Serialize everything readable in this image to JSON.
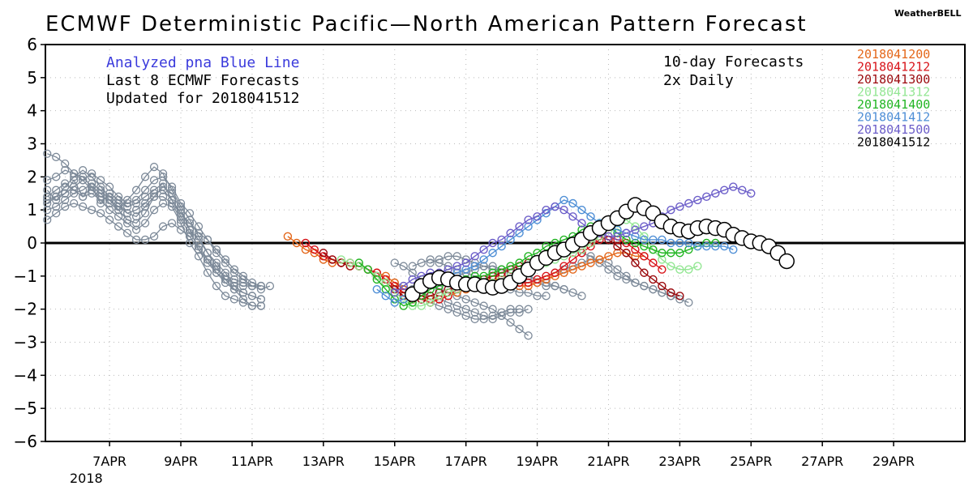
{
  "chart_data": {
    "type": "line",
    "title": "ECMWF Deterministic Pacific—North American Pattern Forecast",
    "brand": "WeatherBELL",
    "ylim": [
      -6,
      6
    ],
    "yticks": [
      "6",
      "5",
      "4",
      "3",
      "2",
      "1",
      "0",
      "−1",
      "−2",
      "−3",
      "−4",
      "−5",
      "−6"
    ],
    "ytick_values": [
      6,
      5,
      4,
      3,
      2,
      1,
      0,
      -1,
      -2,
      -3,
      -4,
      -5,
      -6
    ],
    "xlim": [
      5.2,
      31.0
    ],
    "xticks": [
      {
        "label": "7APR",
        "day": 7
      },
      {
        "label": "9APR",
        "day": 9
      },
      {
        "label": "11APR",
        "day": 11
      },
      {
        "label": "13APR",
        "day": 13
      },
      {
        "label": "15APR",
        "day": 15
      },
      {
        "label": "17APR",
        "day": 17
      },
      {
        "label": "19APR",
        "day": 19
      },
      {
        "label": "21APR",
        "day": 21
      },
      {
        "label": "23APR",
        "day": 23
      },
      {
        "label": "25APR",
        "day": 25
      },
      {
        "label": "27APR",
        "day": 27
      },
      {
        "label": "29APR",
        "day": 29
      }
    ],
    "year_label": "2018",
    "grid": true,
    "annotations": {
      "analyzed": "Analyzed pna Blue Line",
      "last8": "Last 8 ECMWF Forecasts",
      "updated": "Updated for 2018041512",
      "tenday": "10-day Forecasts",
      "twice": "2x Daily"
    },
    "colors": {
      "analyzed_text": "#3b3bdc",
      "history": "#7d8a99",
      "zero_line": "#000000",
      "grid": "#b9b9b9"
    },
    "legend_position": "top-right",
    "history_series": [
      [
        1.6,
        1.3,
        1.5,
        1.9,
        1.4,
        1.7,
        1.2,
        1.5,
        1.3,
        1.1,
        1.2,
        1.4,
        1.6,
        1.8,
        1.3,
        0.9,
        0.6,
        0.3,
        0.1,
        -0.3,
        -0.6,
        -0.9,
        -1.1,
        -1.3,
        -1.4,
        -1.3
      ],
      [
        2.7,
        2.6,
        2.4,
        2.1,
        2.0,
        1.7,
        1.5,
        1.2,
        1.0,
        1.3,
        1.6,
        2.0,
        2.3,
        2.1,
        1.6,
        1.1,
        0.7,
        0.2,
        -0.3,
        -0.7,
        -1.1,
        -1.4,
        -1.7,
        -1.9,
        -1.9
      ],
      [
        1.0,
        1.1,
        1.3,
        1.5,
        1.6,
        1.8,
        1.6,
        1.3,
        1.0,
        0.7,
        0.6,
        0.9,
        1.4,
        1.7,
        1.5,
        1.0,
        0.4,
        -0.2,
        -0.6,
        -0.9,
        -1.1,
        -1.2,
        -1.3,
        -1.3,
        -1.3
      ],
      [
        0.7,
        0.9,
        1.1,
        1.2,
        1.1,
        1.0,
        0.9,
        0.7,
        0.5,
        0.3,
        0.1,
        0.1,
        0.2,
        0.5,
        0.6,
        0.4,
        0.2,
        -0.2,
        -0.5,
        -0.8,
        -1.0,
        -1.1,
        -1.2,
        -1.3,
        -1.3
      ],
      [
        1.3,
        1.4,
        1.5,
        1.7,
        1.9,
        2.1,
        1.9,
        1.7,
        1.4,
        1.2,
        1.3,
        1.6,
        1.9,
        2.0,
        1.7,
        1.2,
        0.9,
        0.5,
        0.1,
        -0.2,
        -0.5,
        -0.8,
        -1.0,
        -1.2,
        -1.3
      ],
      [
        1.9,
        2.0,
        2.2,
        2.1,
        1.9,
        1.6,
        1.4,
        1.3,
        1.1,
        0.9,
        1.0,
        1.2,
        1.5,
        1.6,
        1.3,
        0.8,
        0.4,
        0.1,
        -0.3,
        -0.6,
        -0.9,
        -1.3,
        -1.5,
        -1.6,
        -1.7
      ],
      [
        1.2,
        1.4,
        1.7,
        2.0,
        2.2,
        2.0,
        1.7,
        1.4,
        1.2,
        0.9,
        0.8,
        1.1,
        1.4,
        1.4,
        1.2,
        0.7,
        0.3,
        -0.1,
        -0.5,
        -0.9,
        -1.2,
        -1.4,
        -1.5,
        -1.6,
        -1.7
      ],
      [
        1.4,
        1.6,
        1.8,
        1.6,
        1.4,
        1.5,
        1.3,
        1.0,
        0.8,
        0.6,
        0.4,
        0.6,
        1.0,
        1.2,
        1.1,
        0.6,
        0.0,
        -0.4,
        -0.9,
        -1.3,
        -1.6,
        -1.7,
        -1.8,
        -1.9,
        -1.9
      ]
    ],
    "history_day0": 5.25,
    "history_step": 0.25,
    "history_tails": [
      {
        "x0": 15.0,
        "values": [
          -0.6,
          -0.7,
          -0.9,
          -1.1,
          -1.2,
          -1.4,
          -1.5,
          -1.6,
          -1.7,
          -1.8,
          -1.9,
          -2.0,
          -2.2,
          -2.4,
          -2.6,
          -2.8
        ]
      },
      {
        "x0": 15.0,
        "values": [
          -1.2,
          -1.3,
          -1.4,
          -1.5,
          -1.6,
          -1.7,
          -1.8,
          -1.9,
          -2.0,
          -2.1,
          -2.2,
          -2.3,
          -2.2,
          -2.1,
          -2.1,
          -2.0
        ]
      },
      {
        "x0": 15.5,
        "values": [
          -0.7,
          -0.6,
          -0.5,
          -0.6,
          -0.7,
          -0.8,
          -0.9,
          -1.0,
          -1.1,
          -1.2,
          -1.3,
          -1.4,
          -1.5,
          -1.5,
          -1.6,
          -1.6
        ]
      },
      {
        "x0": 15.5,
        "values": [
          -1.6,
          -1.7,
          -1.8,
          -1.9,
          -2.0,
          -2.1,
          -2.2,
          -2.3,
          -2.3,
          -2.2,
          -2.1,
          -2.0,
          -2.0
        ]
      },
      {
        "x0": 16.0,
        "values": [
          -0.6,
          -0.5,
          -0.4,
          -0.4,
          -0.5,
          -0.6,
          -0.7,
          -0.8,
          -0.8,
          -0.9,
          -1.0,
          -1.0,
          -1.1,
          -1.2,
          -1.3,
          -1.4
        ]
      },
      {
        "x0": 16.5,
        "values": [
          -1.1,
          -1.0,
          -0.9,
          -0.8,
          -0.7,
          -0.7,
          -0.8,
          -0.9,
          -1.0,
          -1.1,
          -1.2,
          -1.3,
          -1.3,
          -1.4,
          -1.5,
          -1.6
        ]
      },
      {
        "x0": 19.5,
        "values": [
          -0.4,
          -0.3,
          -0.2,
          -0.3,
          -0.4,
          -0.6,
          -0.8,
          -1.0,
          -1.1,
          -1.2,
          -1.3,
          -1.4,
          -1.5,
          -1.6,
          -1.7,
          -1.8
        ]
      },
      {
        "x0": 19.5,
        "values": [
          -0.9,
          -0.8,
          -0.7,
          -0.6,
          -0.5,
          -0.5,
          -0.6,
          -0.8,
          -1.0,
          -1.2,
          -1.3,
          -1.4,
          -1.5,
          -1.6
        ]
      }
    ],
    "forecasts": [
      {
        "name": "2018041200",
        "color": "#e4671a",
        "x0": 12.0,
        "values": [
          0.2,
          0.0,
          -0.2,
          -0.3,
          -0.5,
          -0.6,
          -0.6,
          -0.7,
          -0.7,
          -0.8,
          -0.9,
          -1.0,
          -1.2,
          -1.4,
          -1.5,
          -1.6,
          -1.7,
          -1.7,
          -1.6,
          -1.5,
          -1.4,
          -1.3,
          -1.2,
          -1.1,
          -1.1,
          -1.2,
          -1.3,
          -1.3,
          -1.2,
          -1.1,
          -1.0,
          -0.9,
          -0.8,
          -0.7,
          -0.6,
          -0.5,
          -0.4,
          -0.3,
          -0.3,
          -0.4,
          -0.4
        ]
      },
      {
        "name": "2018041212",
        "color": "#d8141a",
        "x0": 12.5,
        "values": [
          0.0,
          -0.2,
          -0.4,
          -0.5,
          -0.6,
          -0.6,
          -0.7,
          -0.8,
          -0.9,
          -1.1,
          -1.3,
          -1.5,
          -1.6,
          -1.7,
          -1.8,
          -1.7,
          -1.6,
          -1.4,
          -1.3,
          -1.2,
          -1.1,
          -1.0,
          -1.0,
          -1.1,
          -1.2,
          -1.2,
          -1.1,
          -1.0,
          -0.9,
          -0.7,
          -0.5,
          -0.3,
          -0.1,
          0.1,
          0.2,
          0.1,
          0.0,
          -0.2,
          -0.4,
          -0.6,
          -0.8
        ]
      },
      {
        "name": "2018041300",
        "color": "#9b0a0e",
        "x0": 13.0,
        "values": [
          -0.3,
          -0.5,
          -0.6,
          -0.7,
          -0.7,
          -0.8,
          -1.0,
          -1.2,
          -1.4,
          -1.6,
          -1.7,
          -1.7,
          -1.6,
          -1.5,
          -1.4,
          -1.3,
          -1.3,
          -1.2,
          -1.1,
          -1.0,
          -0.9,
          -0.8,
          -0.7,
          -0.6,
          -0.5,
          -0.4,
          -0.3,
          -0.2,
          -0.1,
          0.0,
          0.1,
          0.2,
          0.1,
          -0.1,
          -0.3,
          -0.6,
          -0.9,
          -1.1,
          -1.3,
          -1.5,
          -1.6
        ]
      },
      {
        "name": "2018041312",
        "color": "#93e693",
        "x0": 13.5,
        "values": [
          -0.5,
          -0.6,
          -0.7,
          -0.8,
          -1.0,
          -1.2,
          -1.5,
          -1.7,
          -1.9,
          -1.9,
          -1.8,
          -1.6,
          -1.5,
          -1.4,
          -1.3,
          -1.3,
          -1.2,
          -1.2,
          -1.1,
          -1.0,
          -0.9,
          -0.8,
          -0.7,
          -0.6,
          -0.5,
          -0.4,
          -0.3,
          -0.2,
          0.0,
          0.2,
          0.4,
          0.6,
          0.7,
          0.5,
          0.2,
          -0.2,
          -0.5,
          -0.7,
          -0.8,
          -0.8,
          -0.7
        ]
      },
      {
        "name": "2018041400",
        "color": "#22b523",
        "x0": 14.0,
        "values": [
          -0.6,
          -0.8,
          -1.1,
          -1.4,
          -1.7,
          -1.9,
          -1.8,
          -1.6,
          -1.4,
          -1.3,
          -1.2,
          -1.2,
          -1.1,
          -1.0,
          -1.0,
          -0.9,
          -0.8,
          -0.7,
          -0.6,
          -0.4,
          -0.3,
          -0.1,
          0.0,
          0.1,
          0.2,
          0.4,
          0.5,
          0.6,
          0.5,
          0.3,
          0.1,
          0.0,
          -0.1,
          -0.2,
          -0.3,
          -0.3,
          -0.3,
          -0.2,
          -0.1,
          0.0,
          0.0
        ]
      },
      {
        "name": "2018041412",
        "color": "#4f8fd6",
        "x0": 14.5,
        "values": [
          -1.4,
          -1.6,
          -1.8,
          -1.7,
          -1.5,
          -1.3,
          -1.2,
          -1.1,
          -1.0,
          -0.9,
          -0.8,
          -0.7,
          -0.5,
          -0.3,
          -0.1,
          0.1,
          0.3,
          0.5,
          0.7,
          0.9,
          1.1,
          1.3,
          1.2,
          1.0,
          0.8,
          0.6,
          0.5,
          0.4,
          0.3,
          0.2,
          0.1,
          0.1,
          0.1,
          0.0,
          0.0,
          0.0,
          -0.1,
          -0.1,
          -0.1,
          -0.1,
          -0.2
        ]
      },
      {
        "name": "2018041500",
        "color": "#6c5ec9",
        "x0": 15.0,
        "values": [
          -1.5,
          -1.3,
          -1.1,
          -1.0,
          -0.9,
          -0.9,
          -0.8,
          -0.7,
          -0.6,
          -0.4,
          -0.2,
          0.0,
          0.1,
          0.3,
          0.5,
          0.7,
          0.8,
          1.0,
          1.1,
          1.0,
          0.8,
          0.6,
          0.4,
          0.3,
          0.2,
          0.2,
          0.3,
          0.4,
          0.5,
          0.6,
          0.8,
          1.0,
          1.1,
          1.2,
          1.3,
          1.4,
          1.5,
          1.6,
          1.7,
          1.6,
          1.5
        ]
      },
      {
        "name": "2018041512",
        "color": "#000000",
        "x0": 15.5,
        "values": [
          -1.55,
          -1.3,
          -1.15,
          -1.05,
          -1.1,
          -1.2,
          -1.25,
          -1.25,
          -1.3,
          -1.35,
          -1.3,
          -1.2,
          -1.0,
          -0.8,
          -0.6,
          -0.45,
          -0.3,
          -0.2,
          -0.05,
          0.1,
          0.3,
          0.45,
          0.6,
          0.75,
          0.95,
          1.15,
          1.05,
          0.9,
          0.65,
          0.5,
          0.4,
          0.35,
          0.45,
          0.5,
          0.45,
          0.4,
          0.25,
          0.15,
          0.05,
          0.0,
          -0.1,
          -0.3,
          -0.55
        ]
      }
    ]
  }
}
